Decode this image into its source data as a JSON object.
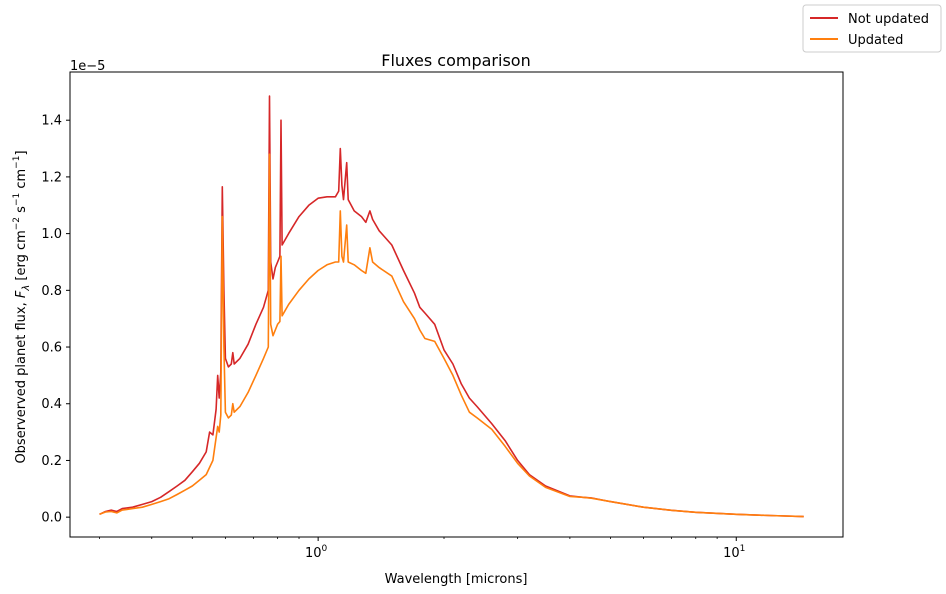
{
  "chart_data": {
    "type": "line",
    "title": "Fluxes comparison",
    "xlabel": "Wavelength [microns]",
    "ylabel_parts": {
      "prefix": "Observerved planet flux, ",
      "symbol_main": "F",
      "symbol_sub": "λ",
      "unit_open": " [erg cm",
      "exp1": "−2",
      "unit_mid1": " s",
      "exp2": "−1",
      "unit_mid2": " cm",
      "exp3": "−1",
      "unit_close": "]"
    },
    "y_offset_text": "1e−5",
    "x_scale": "log",
    "xlim": [
      0.255,
      18.0
    ],
    "ylim": [
      -0.07,
      1.57
    ],
    "x_major_ticks": [
      {
        "value": 1,
        "label_base": "10",
        "label_exp": "0"
      },
      {
        "value": 10,
        "label_base": "10",
        "label_exp": "1"
      }
    ],
    "y_ticks": [
      0.0,
      0.2,
      0.4,
      0.6,
      0.8,
      1.0,
      1.2,
      1.4
    ],
    "y_tick_labels": [
      "0.0",
      "0.2",
      "0.4",
      "0.6",
      "0.8",
      "1.0",
      "1.2",
      "1.4"
    ],
    "grid": false,
    "legend_position": "outside top-right",
    "series": [
      {
        "name": "Not updated",
        "color": "#d62728",
        "points": [
          [
            0.3,
            0.01
          ],
          [
            0.31,
            0.02
          ],
          [
            0.32,
            0.025
          ],
          [
            0.33,
            0.02
          ],
          [
            0.34,
            0.03
          ],
          [
            0.36,
            0.035
          ],
          [
            0.38,
            0.045
          ],
          [
            0.4,
            0.055
          ],
          [
            0.42,
            0.07
          ],
          [
            0.44,
            0.09
          ],
          [
            0.46,
            0.11
          ],
          [
            0.48,
            0.13
          ],
          [
            0.5,
            0.16
          ],
          [
            0.52,
            0.19
          ],
          [
            0.54,
            0.23
          ],
          [
            0.55,
            0.3
          ],
          [
            0.56,
            0.29
          ],
          [
            0.57,
            0.38
          ],
          [
            0.575,
            0.5
          ],
          [
            0.58,
            0.42
          ],
          [
            0.585,
            0.51
          ],
          [
            0.59,
            1.165
          ],
          [
            0.595,
            0.8
          ],
          [
            0.6,
            0.56
          ],
          [
            0.61,
            0.53
          ],
          [
            0.62,
            0.54
          ],
          [
            0.625,
            0.58
          ],
          [
            0.63,
            0.54
          ],
          [
            0.65,
            0.56
          ],
          [
            0.68,
            0.61
          ],
          [
            0.71,
            0.68
          ],
          [
            0.74,
            0.74
          ],
          [
            0.76,
            0.8
          ],
          [
            0.765,
            1.485
          ],
          [
            0.77,
            0.9
          ],
          [
            0.78,
            0.84
          ],
          [
            0.79,
            0.88
          ],
          [
            0.8,
            0.9
          ],
          [
            0.81,
            0.92
          ],
          [
            0.815,
            1.4
          ],
          [
            0.82,
            0.96
          ],
          [
            0.85,
            1.0
          ],
          [
            0.9,
            1.06
          ],
          [
            0.95,
            1.1
          ],
          [
            1.0,
            1.125
          ],
          [
            1.05,
            1.13
          ],
          [
            1.1,
            1.13
          ],
          [
            1.12,
            1.15
          ],
          [
            1.13,
            1.3
          ],
          [
            1.14,
            1.17
          ],
          [
            1.15,
            1.12
          ],
          [
            1.17,
            1.25
          ],
          [
            1.18,
            1.12
          ],
          [
            1.22,
            1.08
          ],
          [
            1.27,
            1.06
          ],
          [
            1.3,
            1.04
          ],
          [
            1.33,
            1.08
          ],
          [
            1.35,
            1.05
          ],
          [
            1.4,
            1.01
          ],
          [
            1.5,
            0.96
          ],
          [
            1.6,
            0.87
          ],
          [
            1.7,
            0.79
          ],
          [
            1.75,
            0.74
          ],
          [
            1.8,
            0.72
          ],
          [
            1.9,
            0.68
          ],
          [
            2.0,
            0.59
          ],
          [
            2.1,
            0.54
          ],
          [
            2.2,
            0.47
          ],
          [
            2.3,
            0.42
          ],
          [
            2.4,
            0.39
          ],
          [
            2.6,
            0.33
          ],
          [
            2.8,
            0.27
          ],
          [
            3.0,
            0.2
          ],
          [
            3.2,
            0.15
          ],
          [
            3.5,
            0.11
          ],
          [
            4.0,
            0.075
          ],
          [
            4.3,
            0.07
          ],
          [
            4.5,
            0.068
          ],
          [
            5.0,
            0.055
          ],
          [
            6.0,
            0.035
          ],
          [
            7.0,
            0.024
          ],
          [
            8.0,
            0.017
          ],
          [
            10.0,
            0.01
          ],
          [
            12.0,
            0.006
          ],
          [
            14.5,
            0.002
          ]
        ]
      },
      {
        "name": "Updated",
        "color": "#ff7f0e",
        "points": [
          [
            0.3,
            0.01
          ],
          [
            0.31,
            0.018
          ],
          [
            0.32,
            0.02
          ],
          [
            0.33,
            0.015
          ],
          [
            0.34,
            0.025
          ],
          [
            0.36,
            0.03
          ],
          [
            0.38,
            0.035
          ],
          [
            0.4,
            0.045
          ],
          [
            0.42,
            0.055
          ],
          [
            0.44,
            0.065
          ],
          [
            0.46,
            0.08
          ],
          [
            0.48,
            0.095
          ],
          [
            0.5,
            0.11
          ],
          [
            0.52,
            0.13
          ],
          [
            0.54,
            0.15
          ],
          [
            0.56,
            0.2
          ],
          [
            0.575,
            0.32
          ],
          [
            0.58,
            0.3
          ],
          [
            0.585,
            0.36
          ],
          [
            0.59,
            1.06
          ],
          [
            0.595,
            0.6
          ],
          [
            0.6,
            0.37
          ],
          [
            0.61,
            0.35
          ],
          [
            0.62,
            0.36
          ],
          [
            0.625,
            0.4
          ],
          [
            0.63,
            0.37
          ],
          [
            0.65,
            0.39
          ],
          [
            0.68,
            0.44
          ],
          [
            0.71,
            0.5
          ],
          [
            0.74,
            0.56
          ],
          [
            0.76,
            0.6
          ],
          [
            0.765,
            1.28
          ],
          [
            0.77,
            0.68
          ],
          [
            0.78,
            0.64
          ],
          [
            0.79,
            0.66
          ],
          [
            0.8,
            0.68
          ],
          [
            0.81,
            0.69
          ],
          [
            0.815,
            0.92
          ],
          [
            0.82,
            0.71
          ],
          [
            0.85,
            0.75
          ],
          [
            0.9,
            0.8
          ],
          [
            0.95,
            0.84
          ],
          [
            1.0,
            0.87
          ],
          [
            1.05,
            0.89
          ],
          [
            1.1,
            0.9
          ],
          [
            1.12,
            0.9
          ],
          [
            1.13,
            1.08
          ],
          [
            1.14,
            0.92
          ],
          [
            1.15,
            0.9
          ],
          [
            1.17,
            1.03
          ],
          [
            1.18,
            0.9
          ],
          [
            1.22,
            0.89
          ],
          [
            1.27,
            0.87
          ],
          [
            1.3,
            0.86
          ],
          [
            1.33,
            0.95
          ],
          [
            1.35,
            0.9
          ],
          [
            1.4,
            0.88
          ],
          [
            1.5,
            0.85
          ],
          [
            1.6,
            0.76
          ],
          [
            1.7,
            0.7
          ],
          [
            1.75,
            0.66
          ],
          [
            1.8,
            0.63
          ],
          [
            1.9,
            0.62
          ],
          [
            2.0,
            0.56
          ],
          [
            2.1,
            0.5
          ],
          [
            2.2,
            0.43
          ],
          [
            2.3,
            0.37
          ],
          [
            2.4,
            0.35
          ],
          [
            2.6,
            0.31
          ],
          [
            2.8,
            0.25
          ],
          [
            3.0,
            0.19
          ],
          [
            3.2,
            0.145
          ],
          [
            3.5,
            0.105
          ],
          [
            4.0,
            0.073
          ],
          [
            4.3,
            0.07
          ],
          [
            4.5,
            0.067
          ],
          [
            5.0,
            0.055
          ],
          [
            6.0,
            0.035
          ],
          [
            7.0,
            0.024
          ],
          [
            8.0,
            0.017
          ],
          [
            10.0,
            0.01
          ],
          [
            12.0,
            0.006
          ],
          [
            14.5,
            0.002
          ]
        ]
      }
    ]
  }
}
